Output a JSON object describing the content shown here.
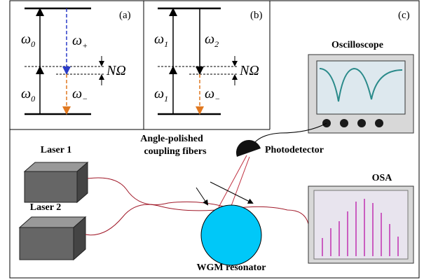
{
  "panels": {
    "a": {
      "label": "(a)",
      "top": {
        "text": "ω",
        "sub": "0"
      },
      "bottom": {
        "text": "ω",
        "sub": "0"
      },
      "up": {
        "text": "ω",
        "sub": "+"
      },
      "down": {
        "text": "ω",
        "sub": "−"
      },
      "shift": "NΩ"
    },
    "b": {
      "label": "(b)",
      "top": {
        "text": "ω",
        "sub": "1"
      },
      "bottom": {
        "text": "ω",
        "sub": "1"
      },
      "up": {
        "text": "ω",
        "sub": "2"
      },
      "down": {
        "text": "ω",
        "sub": "−"
      },
      "shift": "NΩ"
    },
    "c": {
      "label": "(c)",
      "oscilloscope": "Oscilloscope",
      "photodetector": "Photodetector",
      "laser1": "Laser 1",
      "laser2": "Laser 2",
      "fibers": [
        "Angle-polished",
        "coupling fibers"
      ],
      "osa": "OSA",
      "resonator": "WGM resonator"
    }
  }
}
